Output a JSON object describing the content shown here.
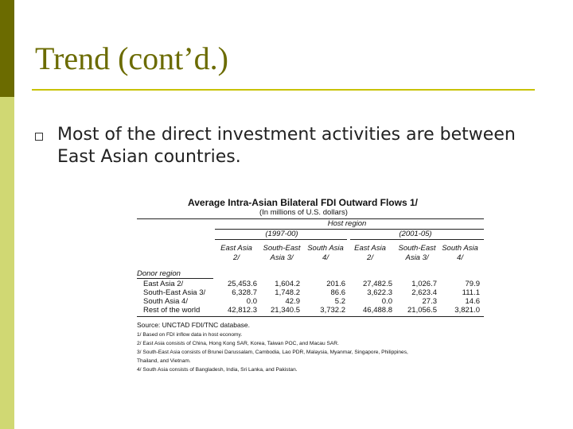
{
  "slide": {
    "title": "Trend (cont’d.)",
    "bullet": "Most of the direct investment activities are between East Asian countries."
  },
  "table": {
    "title": "Average Intra-Asian Bilateral FDI Outward Flows 1/",
    "subtitle": "(In millions of U.S. dollars)",
    "host_region_label": "Host region",
    "periods": [
      "(1997-00)",
      "(2001-05)"
    ],
    "columns": [
      {
        "line1": "East Asia",
        "line2": "2/"
      },
      {
        "line1": "South-East",
        "line2": "Asia 3/"
      },
      {
        "line1": "South Asia",
        "line2": "4/"
      },
      {
        "line1": "East Asia",
        "line2": "2/"
      },
      {
        "line1": "South-East",
        "line2": "Asia 3/"
      },
      {
        "line1": "South Asia",
        "line2": "4/"
      }
    ],
    "donor_region_label": "Donor region",
    "rows": [
      {
        "label": "East Asia 2/",
        "values": [
          "25,453.6",
          "1,604.2",
          "201.6",
          "27,482.5",
          "1,026.7",
          "79.9"
        ]
      },
      {
        "label": "South-East Asia 3/",
        "values": [
          "6,328.7",
          "1,748.2",
          "86.6",
          "3,622.3",
          "2,623.4",
          "111.1"
        ]
      },
      {
        "label": "South Asia 4/",
        "values": [
          "0.0",
          "42.9",
          "5.2",
          "0.0",
          "27.3",
          "14.6"
        ]
      },
      {
        "label": "Rest of the world",
        "values": [
          "42,812.3",
          "21,340.5",
          "3,732.2",
          "46,488.8",
          "21,056.5",
          "3,821.0"
        ]
      }
    ],
    "source": "Source: UNCTAD FDI/TNC database.",
    "notes": [
      "1/ Based on FDI inflow data in host economy.",
      "2/ East Asia consists of China, Hong Kong SAR, Korea, Taiwan POC, and Macau SAR.",
      "3/ South-East Asia consists of Brunei Darussalam, Cambodia, Lao PDR, Malaysia, Myanmar, Singapore, Philippines,",
      "Thailand, and Vietnam.",
      "4/ South Asia consists of Bangladesh, India, Sri Lanka, and Pakistan."
    ]
  },
  "colors": {
    "accent_dark": "#6b6b00",
    "accent_light": "#d0d873",
    "rule": "#c8c200"
  }
}
